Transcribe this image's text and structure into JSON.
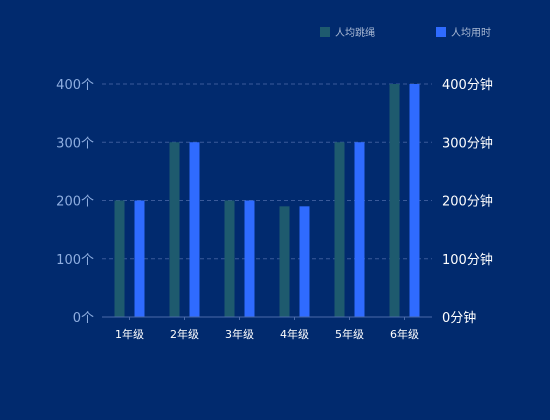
{
  "chart_data": {
    "type": "bar",
    "categories": [
      "1年级",
      "2年级",
      "3年级",
      "4年级",
      "5年级",
      "6年级"
    ],
    "series": [
      {
        "name": "人均跳绳",
        "values": [
          200,
          300,
          200,
          190,
          300,
          400
        ],
        "color": "#1e5a6e",
        "axis": "left"
      },
      {
        "name": "人均用时",
        "values": [
          200,
          300,
          200,
          190,
          300,
          400
        ],
        "color": "#2f6bff",
        "axis": "right"
      }
    ],
    "y_left": {
      "ticks": [
        0,
        100,
        200,
        300,
        400
      ],
      "tick_labels": [
        "0个",
        "100个",
        "200个",
        "300个",
        "400个"
      ],
      "ylim": [
        0,
        400
      ]
    },
    "y_right": {
      "ticks": [
        0,
        100,
        200,
        300,
        400
      ],
      "tick_labels": [
        "0分钟",
        "100分钟",
        "200分钟",
        "300分钟",
        "400分钟"
      ],
      "ylim": [
        0,
        400
      ]
    },
    "grid": true,
    "grid_style": "dashed",
    "legend_position": "top-right",
    "background": "#012a6e",
    "axis_color": "#2a4a8a"
  }
}
